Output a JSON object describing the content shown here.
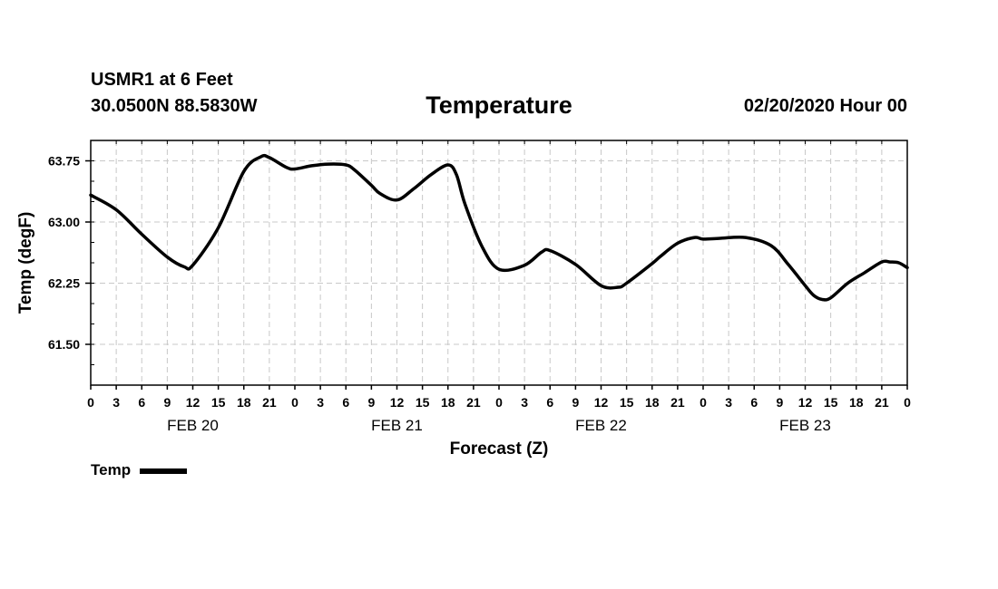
{
  "header": {
    "station": "USMR1 at 6 Feet",
    "coords": "30.0500N 88.5830W",
    "title": "Temperature",
    "runtime": "02/20/2020 Hour 00"
  },
  "legend": {
    "label": "Temp"
  },
  "chart_data": {
    "type": "line",
    "title": "Temperature",
    "xlabel": "Forecast (Z)",
    "ylabel": "Temp (degF)",
    "ylim": [
      61.0,
      64.0
    ],
    "xlim": [
      0,
      96
    ],
    "grid": true,
    "yticks": [
      61.5,
      62.25,
      63.0,
      63.75
    ],
    "ytick_labels": [
      "61.50",
      "62.25",
      "63.00",
      "63.75"
    ],
    "xtick_hours": [
      0,
      3,
      6,
      9,
      12,
      15,
      18,
      21,
      24,
      27,
      30,
      33,
      36,
      39,
      42,
      45,
      48,
      51,
      54,
      57,
      60,
      63,
      66,
      69,
      72,
      75,
      78,
      81,
      84,
      87,
      90,
      93,
      96
    ],
    "xtick_labels": [
      "0",
      "3",
      "6",
      "9",
      "12",
      "15",
      "18",
      "21",
      "0",
      "3",
      "6",
      "9",
      "12",
      "15",
      "18",
      "21",
      "0",
      "3",
      "6",
      "9",
      "12",
      "15",
      "18",
      "21",
      "0",
      "3",
      "6",
      "9",
      "12",
      "15",
      "18",
      "21",
      "0"
    ],
    "date_labels": [
      {
        "hour": 12,
        "label": "FEB 20"
      },
      {
        "hour": 36,
        "label": "FEB 21"
      },
      {
        "hour": 60,
        "label": "FEB 22"
      },
      {
        "hour": 84,
        "label": "FEB 23"
      }
    ],
    "series": [
      {
        "name": "Temp",
        "x": [
          0,
          3,
          6,
          9,
          11,
          12,
          15,
          18,
          20,
          21,
          23,
          24,
          26,
          28,
          30,
          31,
          33,
          34,
          36,
          38,
          40,
          42,
          43,
          44,
          46,
          48,
          51,
          53,
          54,
          57,
          60,
          62,
          63,
          66,
          67,
          69,
          71,
          72,
          74,
          77,
          80,
          82,
          84,
          85,
          86,
          87,
          89,
          91,
          93,
          94,
          95,
          96
        ],
        "y": [
          63.33,
          63.15,
          62.85,
          62.57,
          62.45,
          62.47,
          62.93,
          63.62,
          63.8,
          63.79,
          63.67,
          63.65,
          63.69,
          63.71,
          63.7,
          63.64,
          63.45,
          63.35,
          63.27,
          63.41,
          63.58,
          63.7,
          63.58,
          63.22,
          62.7,
          62.42,
          62.47,
          62.63,
          62.65,
          62.48,
          62.22,
          62.2,
          62.25,
          62.49,
          62.58,
          62.74,
          62.81,
          62.79,
          62.8,
          62.81,
          62.71,
          62.48,
          62.22,
          62.1,
          62.05,
          62.07,
          62.25,
          62.38,
          62.51,
          62.51,
          62.5,
          62.44
        ]
      }
    ]
  }
}
